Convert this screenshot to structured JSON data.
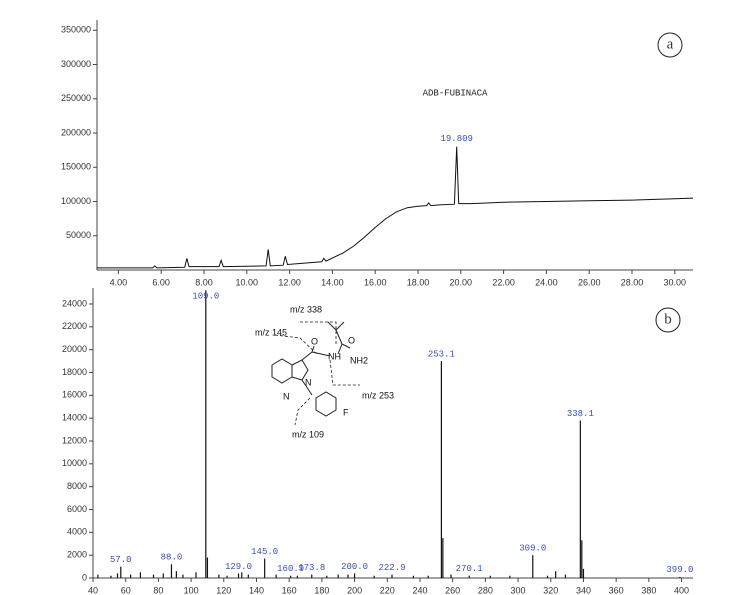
{
  "chart_data": [
    {
      "type": "line",
      "panel_label": "a",
      "annotation": "ADB-FUBINACA",
      "peak_label_x": 19.809,
      "color": "#111111",
      "x": [
        3.0,
        5.6,
        5.7,
        5.8,
        7.1,
        7.2,
        7.3,
        8.7,
        8.8,
        8.9,
        10.9,
        11.0,
        11.1,
        11.7,
        11.8,
        11.9,
        13.5,
        13.6,
        13.7,
        14.5,
        15.0,
        15.5,
        16.0,
        16.5,
        17.0,
        17.5,
        18.0,
        18.4,
        18.5,
        18.6,
        19.0,
        19.7,
        19.809,
        19.9,
        20.5,
        22,
        24,
        26,
        28,
        30,
        30.85
      ],
      "values": [
        3000,
        3000,
        6000,
        3000,
        4000,
        17000,
        5000,
        5000,
        14000,
        5000,
        6000,
        30000,
        6000,
        7000,
        20000,
        8000,
        12000,
        17000,
        13000,
        25000,
        35000,
        48000,
        62000,
        75000,
        85000,
        91000,
        93000,
        94000,
        98000,
        94000,
        95000,
        96000,
        180000,
        97000,
        97000,
        99000,
        100000,
        101000,
        102000,
        104000,
        105000
      ],
      "xlim": [
        3.0,
        30.85
      ],
      "ylim": [
        0,
        365000
      ],
      "xticks": [
        {
          "value": 4,
          "label": "4.00"
        },
        {
          "value": 6,
          "label": "6.00"
        },
        {
          "value": 8,
          "label": "8.00"
        },
        {
          "value": 10,
          "label": "10.00"
        },
        {
          "value": 12,
          "label": "12.00"
        },
        {
          "value": 14,
          "label": "14.00"
        },
        {
          "value": 16,
          "label": "16.00"
        },
        {
          "value": 18,
          "label": "18.00"
        },
        {
          "value": 20,
          "label": "20.00"
        },
        {
          "value": 22,
          "label": "22.00"
        },
        {
          "value": 24,
          "label": "24.00"
        },
        {
          "value": 26,
          "label": "26.00"
        },
        {
          "value": 28,
          "label": "28.00"
        },
        {
          "value": 30,
          "label": "30.00"
        }
      ],
      "yticks": [
        50000,
        100000,
        150000,
        200000,
        250000,
        300000,
        350000
      ]
    },
    {
      "type": "bar",
      "panel_label": "b",
      "color": "#111111",
      "structure_labels": [
        "m/z 338",
        "m/z 145",
        "m/z 253",
        "m/z 109",
        "O",
        "O",
        "NH",
        "NH2",
        "N",
        "N",
        "F"
      ],
      "x": [
        43,
        51,
        55,
        57,
        63,
        69,
        77,
        83,
        88,
        91,
        95,
        103,
        109,
        110,
        117,
        122,
        129,
        131,
        135,
        145,
        152,
        160.9,
        165,
        173.8,
        183,
        190,
        196,
        200,
        212,
        222.9,
        236,
        245,
        253.1,
        254,
        259,
        270.1,
        283,
        295,
        309,
        318,
        323,
        329,
        338.1,
        339,
        340,
        399
      ],
      "values": [
        300,
        200,
        400,
        1000,
        300,
        500,
        300,
        400,
        1200,
        600,
        300,
        500,
        25200,
        1800,
        300,
        200,
        400,
        500,
        300,
        1700,
        300,
        200,
        200,
        300,
        200,
        300,
        300,
        400,
        200,
        300,
        200,
        200,
        19000,
        3500,
        300,
        200,
        200,
        200,
        2000,
        200,
        600,
        300,
        13800,
        3300,
        800,
        100
      ],
      "peak_labels": [
        null,
        null,
        null,
        "57.0",
        null,
        null,
        null,
        null,
        "88.0",
        null,
        null,
        null,
        "109.0",
        null,
        null,
        null,
        "129.0",
        null,
        null,
        "145.0",
        null,
        "160.9",
        null,
        "173.8",
        null,
        null,
        null,
        "200.0",
        null,
        "222.9",
        null,
        null,
        "253.1",
        null,
        null,
        "270.1",
        null,
        null,
        "309.0",
        null,
        null,
        null,
        "338.1",
        null,
        null,
        "399.0"
      ],
      "xlim": [
        40,
        407
      ],
      "ylim": [
        0,
        25400
      ],
      "xticks": [
        40,
        60,
        80,
        100,
        120,
        140,
        160,
        180,
        200,
        220,
        240,
        260,
        280,
        300,
        320,
        340,
        360,
        380,
        400
      ],
      "yticks": [
        0,
        2000,
        4000,
        6000,
        8000,
        10000,
        12000,
        14000,
        16000,
        18000,
        20000,
        22000,
        24000
      ]
    }
  ]
}
